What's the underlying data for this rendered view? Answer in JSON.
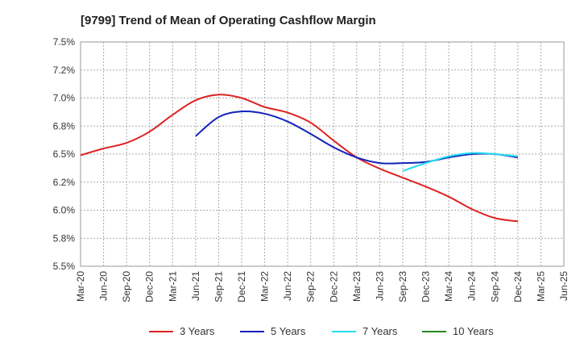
{
  "chart_data": {
    "type": "line",
    "title": "[9799]  Trend of Mean of Operating Cashflow Margin",
    "xlabel": "",
    "ylabel": "",
    "ylim": [
      5.5,
      7.5
    ],
    "y_ticks": [
      "5.5%",
      "5.8%",
      "6.0%",
      "6.2%",
      "6.5%",
      "6.8%",
      "7.0%",
      "7.2%",
      "7.5%"
    ],
    "categories": [
      "Mar-20",
      "Jun-20",
      "Sep-20",
      "Dec-20",
      "Mar-21",
      "Jun-21",
      "Sep-21",
      "Dec-21",
      "Mar-22",
      "Jun-22",
      "Sep-22",
      "Dec-22",
      "Mar-23",
      "Jun-23",
      "Sep-23",
      "Dec-23",
      "Mar-24",
      "Jun-24",
      "Sep-24",
      "Dec-24",
      "Mar-25",
      "Jun-25"
    ],
    "grid": true,
    "legend_position": "bottom",
    "series": [
      {
        "name": "3 Years",
        "color": "#dd2222",
        "values": [
          6.49,
          6.55,
          6.6,
          6.7,
          6.85,
          6.98,
          7.03,
          7.0,
          6.92,
          6.87,
          6.78,
          6.62,
          6.47,
          6.37,
          6.29,
          6.21,
          6.12,
          6.01,
          5.93,
          5.9,
          null,
          null
        ]
      },
      {
        "name": "5 Years",
        "color": "#1122bb",
        "values": [
          null,
          null,
          null,
          null,
          null,
          6.66,
          6.83,
          6.88,
          6.86,
          6.79,
          6.68,
          6.56,
          6.47,
          6.42,
          6.42,
          6.43,
          6.47,
          6.5,
          6.5,
          6.47,
          null,
          null
        ]
      },
      {
        "name": "7 Years",
        "color": "#22ddee",
        "values": [
          null,
          null,
          null,
          null,
          null,
          null,
          null,
          null,
          null,
          null,
          null,
          null,
          null,
          null,
          6.35,
          6.42,
          6.48,
          6.51,
          6.5,
          6.48,
          null,
          null
        ]
      },
      {
        "name": "10 Years",
        "color": "#228822",
        "values": [
          null,
          null,
          null,
          null,
          null,
          null,
          null,
          null,
          null,
          null,
          null,
          null,
          null,
          null,
          null,
          null,
          null,
          null,
          null,
          null,
          null,
          null
        ]
      }
    ]
  }
}
